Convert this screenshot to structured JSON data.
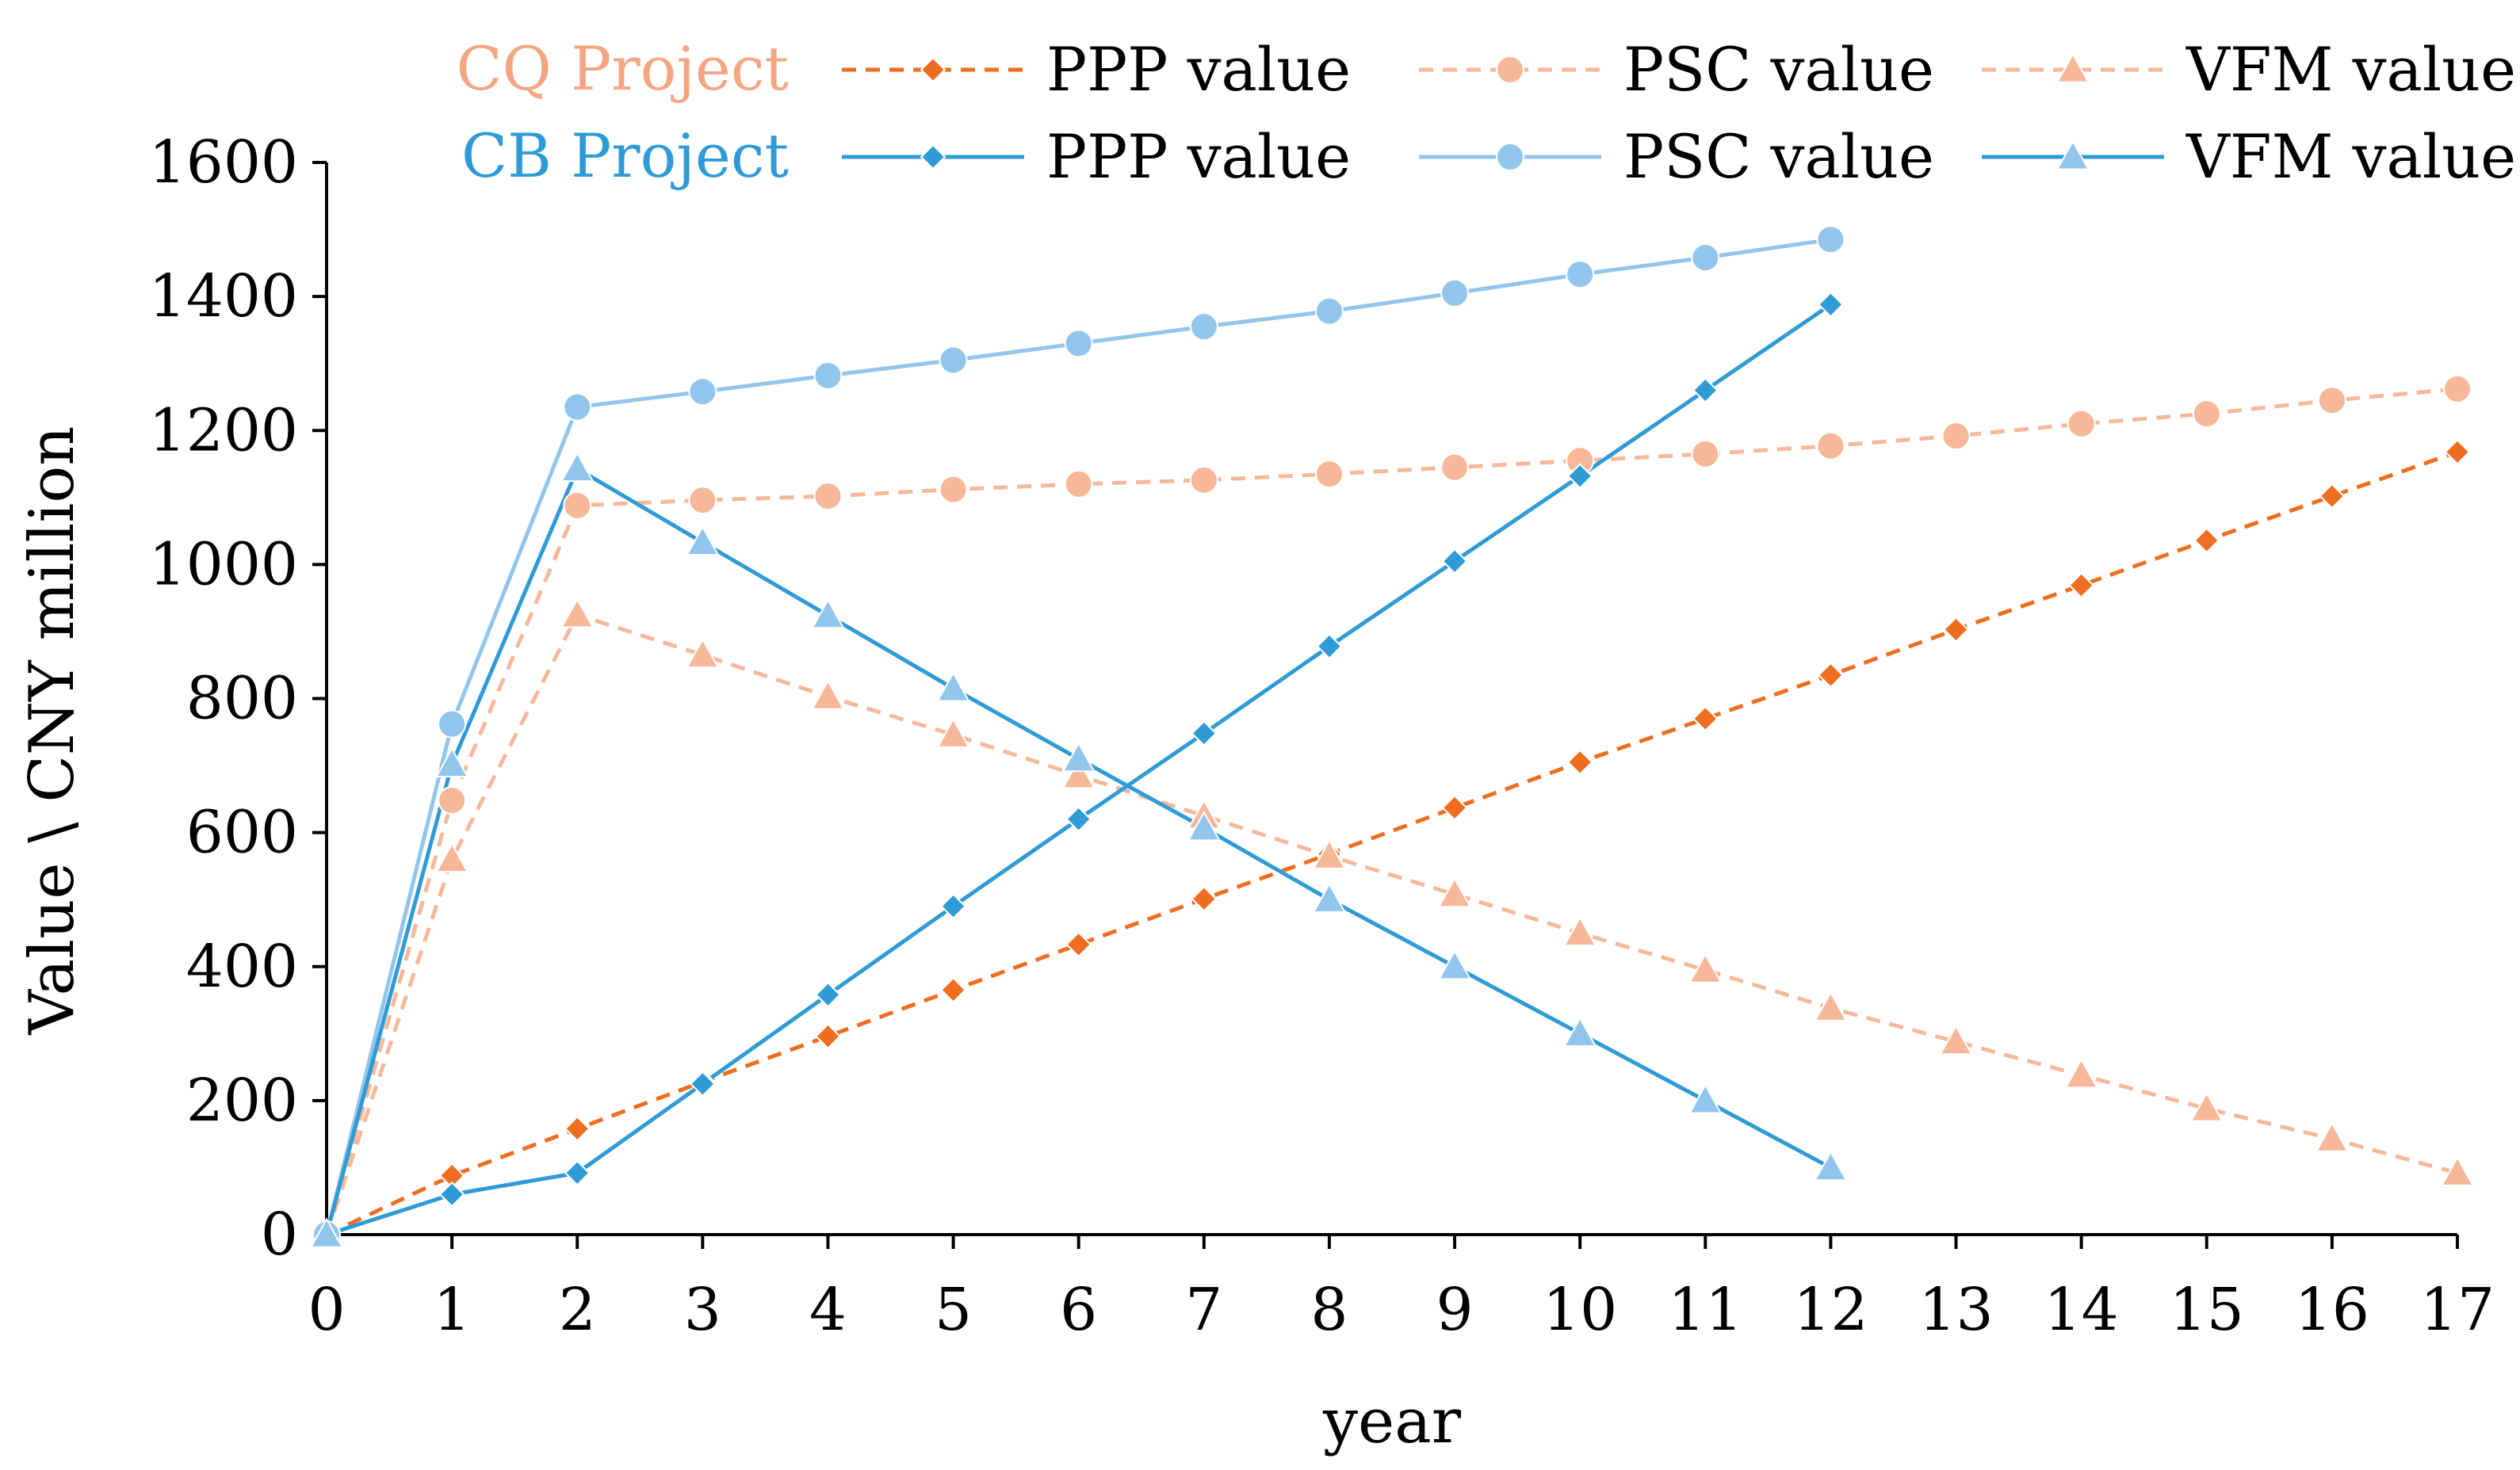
{
  "chart_data": {
    "type": "line",
    "title": "",
    "xlabel": "year",
    "ylabel": "Value \\ CNY million",
    "xlim": [
      0,
      17
    ],
    "ylim": [
      0,
      1600
    ],
    "x_ticks": [
      0,
      1,
      2,
      3,
      4,
      5,
      6,
      7,
      8,
      9,
      10,
      11,
      12,
      13,
      14,
      15,
      16,
      17
    ],
    "y_ticks": [
      0,
      200,
      400,
      600,
      800,
      1000,
      1200,
      1400,
      1600
    ],
    "grid": false,
    "legend_position": "top",
    "groups": [
      {
        "key": "cq",
        "label": "CQ Project",
        "color": "#F4A582"
      },
      {
        "key": "cb",
        "label": "CB Project",
        "color": "#2F9BD6"
      }
    ],
    "series": [
      {
        "group": "cq",
        "name": "PPP value",
        "color": "#EE6D1F",
        "dashed": true,
        "marker": "diamond",
        "x": [
          0,
          1,
          2,
          3,
          4,
          5,
          6,
          7,
          8,
          9,
          10,
          11,
          12,
          13,
          14,
          15,
          16,
          17
        ],
        "values": [
          0,
          88,
          158,
          228,
          296,
          365,
          433,
          501,
          568,
          637,
          705,
          770,
          835,
          903,
          969,
          1036,
          1102,
          1168
        ]
      },
      {
        "group": "cq",
        "name": "PSC value",
        "color": "#F7B89A",
        "dashed": true,
        "marker": "circle",
        "x": [
          0,
          1,
          2,
          3,
          4,
          5,
          6,
          7,
          8,
          9,
          10,
          11,
          12,
          13,
          14,
          15,
          16,
          17
        ],
        "values": [
          0,
          648,
          1088,
          1096,
          1102,
          1112,
          1120,
          1126,
          1135,
          1145,
          1155,
          1165,
          1177,
          1192,
          1210,
          1225,
          1245,
          1262
        ]
      },
      {
        "group": "cq",
        "name": "VFM value",
        "color": "#F7B89A",
        "dashed": true,
        "marker": "triangle",
        "x": [
          0,
          1,
          2,
          3,
          4,
          5,
          6,
          7,
          8,
          9,
          10,
          11,
          12,
          13,
          14,
          15,
          16,
          17
        ],
        "values": [
          0,
          560,
          925,
          865,
          803,
          746,
          685,
          625,
          565,
          508,
          450,
          395,
          338,
          288,
          238,
          188,
          143,
          92
        ]
      },
      {
        "group": "cb",
        "name": "PPP value",
        "color": "#2F9BD6",
        "dashed": false,
        "marker": "diamond",
        "x": [
          0,
          1,
          2,
          3,
          4,
          5,
          6,
          7,
          8,
          9,
          10,
          11,
          12
        ],
        "values": [
          0,
          60,
          92,
          225,
          358,
          490,
          620,
          748,
          878,
          1005,
          1132,
          1260,
          1388
        ]
      },
      {
        "group": "cb",
        "name": "PSC value",
        "color": "#92C5EC",
        "dashed": false,
        "marker": "circle",
        "x": [
          0,
          1,
          2,
          3,
          4,
          5,
          6,
          7,
          8,
          9,
          10,
          11,
          12
        ],
        "values": [
          0,
          762,
          1235,
          1258,
          1282,
          1305,
          1330,
          1355,
          1378,
          1405,
          1433,
          1458,
          1485
        ]
      },
      {
        "group": "cb",
        "name": "VFM value",
        "color": "#92C5EC",
        "line_color": "#2F9BD6",
        "dashed": false,
        "marker": "triangle",
        "x": [
          0,
          1,
          2,
          3,
          4,
          5,
          6,
          7,
          8,
          9,
          10,
          11,
          12
        ],
        "values": [
          0,
          702,
          1143,
          1033,
          924,
          815,
          710,
          607,
          500,
          400,
          300,
          200,
          100
        ]
      }
    ]
  }
}
